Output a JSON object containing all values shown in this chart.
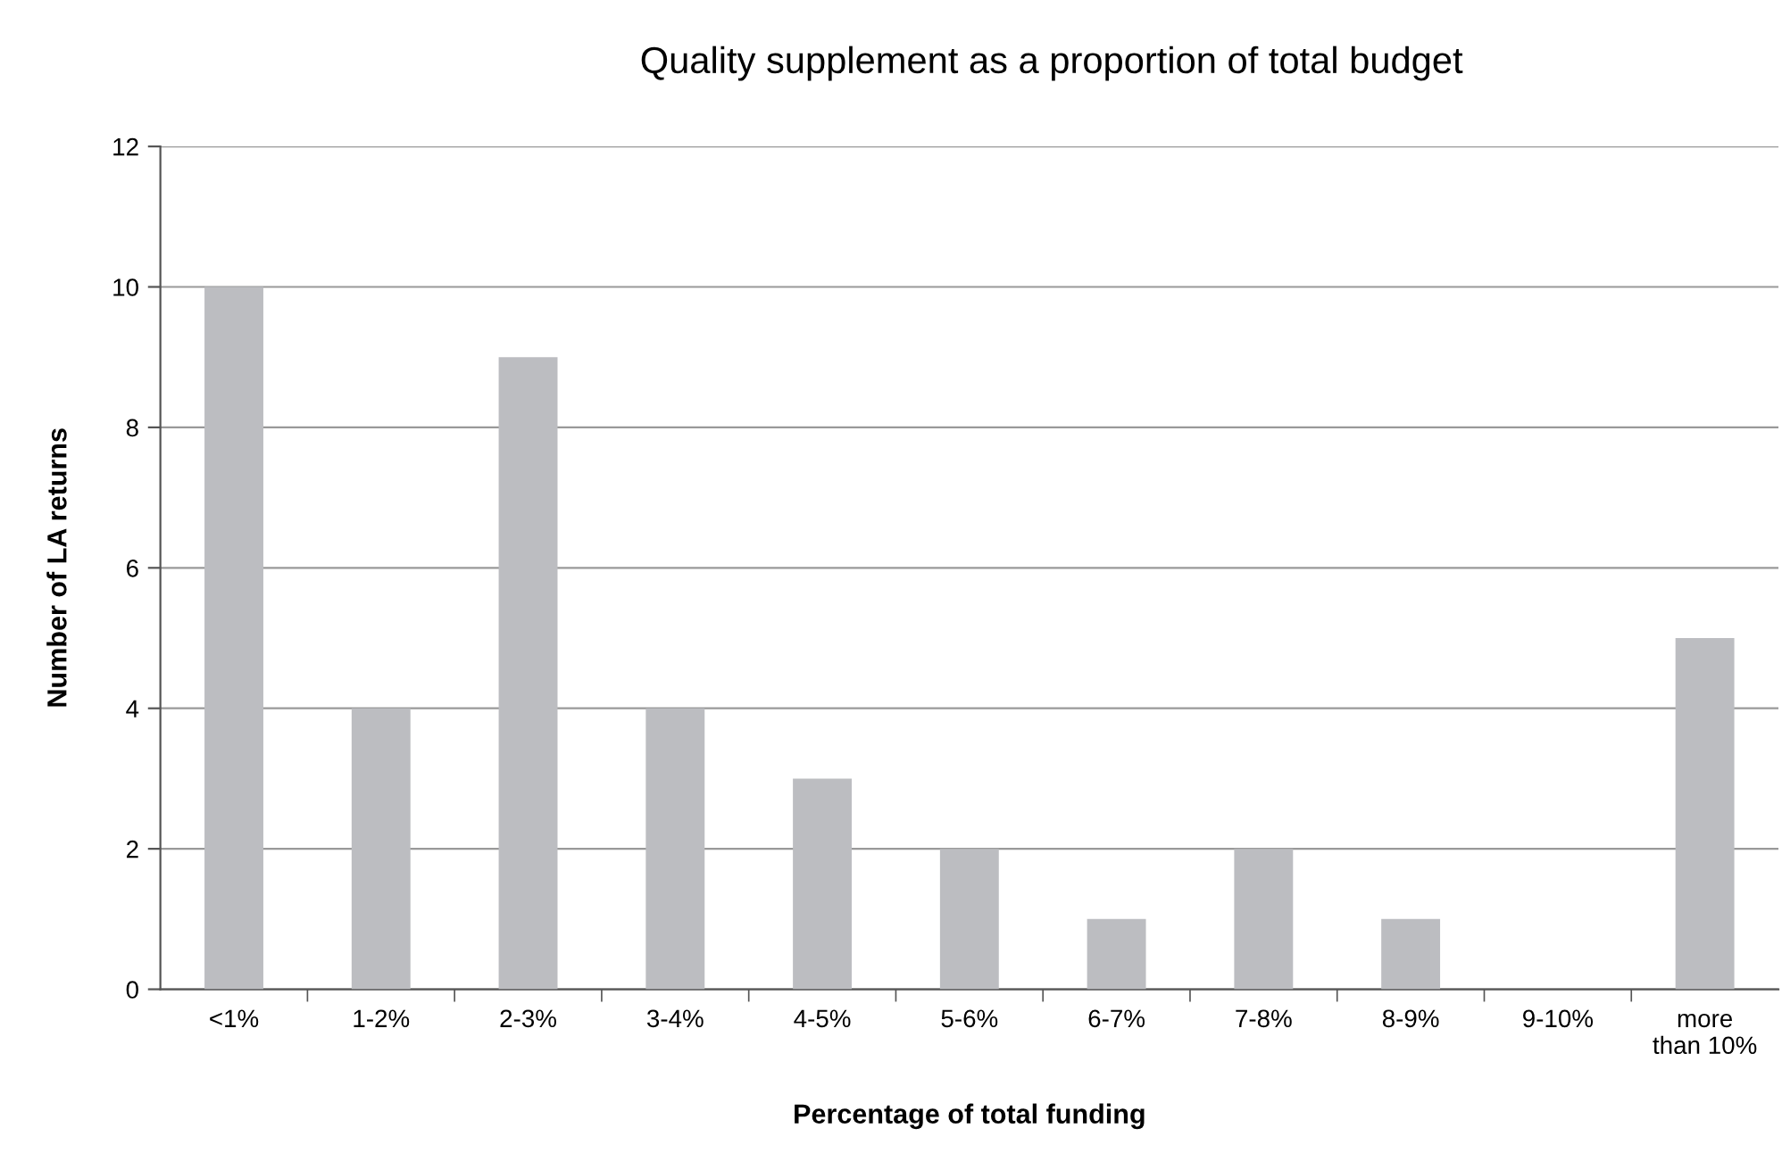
{
  "chart_data": {
    "type": "bar",
    "title": "Quality supplement as a proportion of total budget",
    "xlabel": "Percentage of total funding",
    "ylabel": "Number of LA returns",
    "categories": [
      "<1%",
      "1-2%",
      "2-3%",
      "3-4%",
      "4-5%",
      "5-6%",
      "6-7%",
      "7-8%",
      "8-9%",
      "9-10%",
      "more\nthan 10%"
    ],
    "values": [
      10,
      4,
      9,
      4,
      3,
      2,
      1,
      2,
      1,
      0,
      5
    ],
    "color": "#bcbdc1",
    "ylim": [
      0,
      12
    ],
    "yticks": [
      0,
      2,
      4,
      6,
      8,
      10,
      12
    ],
    "grid": "y",
    "legend": false
  }
}
